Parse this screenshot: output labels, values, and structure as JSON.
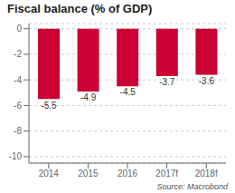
{
  "chart_data": {
    "type": "bar",
    "title": "Fiscal balance (% of GDP)",
    "categories": [
      "2014",
      "2015",
      "2016",
      "2017f",
      "2018f"
    ],
    "values": [
      -5.5,
      -4.9,
      -4.5,
      -3.7,
      -3.6
    ],
    "color": "#cc0033",
    "ylim": [
      -10.5,
      0.4
    ],
    "yticks": [
      0,
      -2,
      -4,
      -6,
      -8,
      -10
    ],
    "grid": true,
    "data_labels": true,
    "annotations": [
      "Source: Macrobond"
    ]
  }
}
